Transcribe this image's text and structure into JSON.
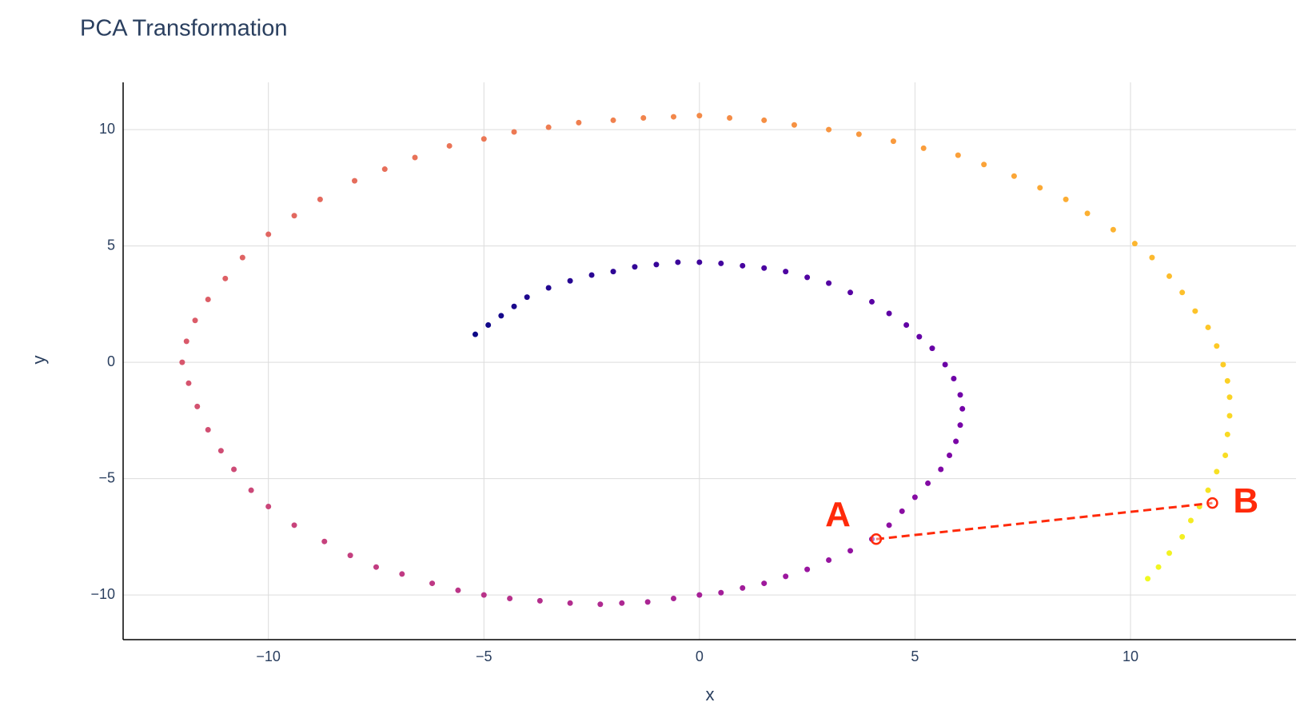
{
  "chart_data": {
    "type": "scatter",
    "title": "PCA Transformation",
    "xlabel": "x",
    "ylabel": "y",
    "xlim": [
      -13.37,
      13.84
    ],
    "ylim": [
      -11.92,
      12.03
    ],
    "xticks": [
      {
        "value": -10,
        "label": "−10"
      },
      {
        "value": -5,
        "label": "−5"
      },
      0,
      5,
      10
    ],
    "yticks": [
      {
        "value": -10,
        "label": "−10"
      },
      {
        "value": -5,
        "label": "−5"
      },
      0,
      5,
      10
    ],
    "grid": true,
    "colorscale": [
      "#0d0887",
      "#46039f",
      "#7201a8",
      "#9c179e",
      "#bd3786",
      "#d8576b",
      "#ed7953",
      "#fb9f3a",
      "#fdca26",
      "#f0f921"
    ],
    "series": [
      {
        "x": [
          -5.2,
          -4.9,
          -4.6,
          -4.3,
          -4.0,
          -3.5,
          -3.0,
          -2.5,
          -2.0,
          -1.5,
          -1.0,
          -0.5,
          0.0,
          0.5,
          1.0,
          1.5,
          2.0,
          2.5,
          3.0,
          3.5,
          4.0,
          4.4,
          4.8,
          5.1,
          5.4,
          5.7,
          5.9,
          6.05,
          6.1,
          6.05,
          5.95,
          5.8,
          5.6,
          5.3,
          5.0,
          4.7,
          4.4,
          4.0,
          3.5,
          3.0,
          2.5,
          2.0,
          1.5,
          1.0,
          0.5,
          0.0,
          -0.6,
          -1.2,
          -1.8,
          -2.3,
          -3.0,
          -3.7,
          -4.4,
          -5.0,
          -5.6,
          -6.2,
          -6.9,
          -7.5,
          -8.1,
          -8.7,
          -9.4,
          -10.0,
          -10.4,
          -10.8,
          -11.1,
          -11.4,
          -11.65,
          -11.85,
          -12.0,
          -11.9,
          -11.7,
          -11.4,
          -11.0,
          -10.6,
          -10.0,
          -9.4,
          -8.8,
          -8.0,
          -7.3,
          -6.6,
          -5.8,
          -5.0,
          -4.3,
          -3.5,
          -2.8,
          -2.0,
          -1.3,
          -0.6,
          0.0,
          0.7,
          1.5,
          2.2,
          3.0,
          3.7,
          4.5,
          5.2,
          6.0,
          6.6,
          7.3,
          7.9,
          8.5,
          9.0,
          9.6,
          10.1,
          10.5,
          10.9,
          11.2,
          11.5,
          11.8,
          12.0,
          12.15,
          12.25,
          12.3,
          12.3,
          12.25,
          12.2,
          12.0,
          11.8,
          11.6,
          11.4,
          11.2,
          10.9,
          10.65,
          10.4
        ],
        "y": [
          1.2,
          1.6,
          2.0,
          2.4,
          2.8,
          3.2,
          3.5,
          3.75,
          3.9,
          4.1,
          4.2,
          4.3,
          4.3,
          4.25,
          4.15,
          4.05,
          3.9,
          3.65,
          3.4,
          3.0,
          2.6,
          2.1,
          1.6,
          1.1,
          0.6,
          -0.1,
          -0.7,
          -1.4,
          -2.0,
          -2.7,
          -3.4,
          -4.0,
          -4.6,
          -5.2,
          -5.8,
          -6.4,
          -7.0,
          -7.6,
          -8.1,
          -8.5,
          -8.9,
          -9.2,
          -9.5,
          -9.7,
          -9.9,
          -10.0,
          -10.15,
          -10.3,
          -10.35,
          -10.4,
          -10.35,
          -10.25,
          -10.15,
          -10.0,
          -9.8,
          -9.5,
          -9.1,
          -8.8,
          -8.3,
          -7.7,
          -7.0,
          -6.2,
          -5.5,
          -4.6,
          -3.8,
          -2.9,
          -1.9,
          -0.9,
          0.0,
          0.9,
          1.8,
          2.7,
          3.6,
          4.5,
          5.5,
          6.3,
          7.0,
          7.8,
          8.3,
          8.8,
          9.3,
          9.6,
          9.9,
          10.1,
          10.3,
          10.4,
          10.5,
          10.55,
          10.6,
          10.5,
          10.4,
          10.2,
          10.0,
          9.8,
          9.5,
          9.2,
          8.9,
          8.5,
          8.0,
          7.5,
          7.0,
          6.4,
          5.7,
          5.1,
          4.5,
          3.7,
          3.0,
          2.2,
          1.5,
          0.7,
          -0.1,
          -0.8,
          -1.5,
          -2.3,
          -3.1,
          -4.0,
          -4.7,
          -5.5,
          -6.2,
          -6.8,
          -7.5,
          -8.2,
          -8.8,
          -9.3
        ]
      },
      {
        "x": [
          4.1,
          11.9
        ],
        "y": [
          -7.6,
          -6.05
        ],
        "color": "#ff2a0a",
        "dash": true
      }
    ],
    "annotations": [
      {
        "text": "A",
        "x": 4.1,
        "y": -7.6
      },
      {
        "text": "B",
        "x": 11.9,
        "y": -6.05
      }
    ]
  }
}
